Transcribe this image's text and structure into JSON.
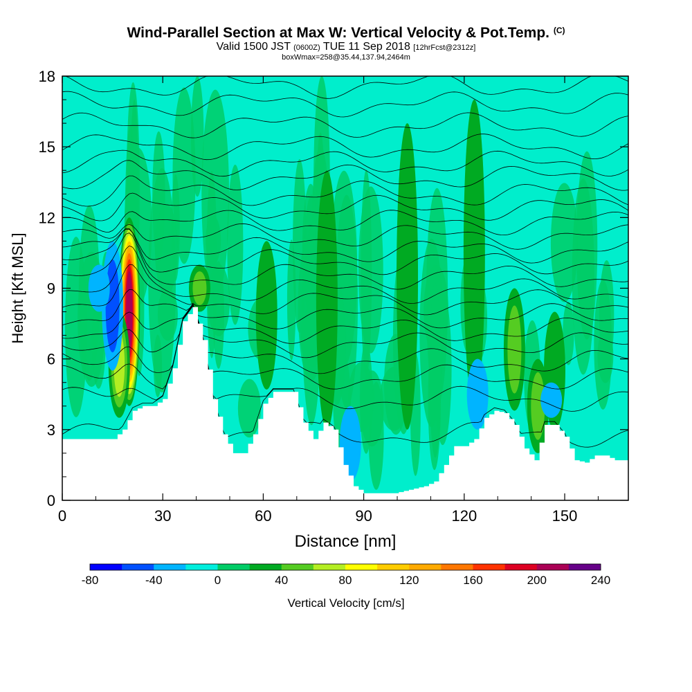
{
  "header": {
    "title": "Wind-Parallel Section at Max W: Vertical Velocity & Pot.Temp.",
    "title_mark": "(C)",
    "valid_prefix": "Valid 1500 JST",
    "valid_utc": "(0600Z)",
    "valid_date": "TUE 11 Sep 2018",
    "forecast": "[12hrFcst@2312z]",
    "box_info": "boxWmax=258@35.44,137.94,2464m"
  },
  "chart_data": {
    "type": "heatmap",
    "xlabel": "Distance [nm]",
    "ylabel": "Height [Kft MSL]",
    "xlim": [
      0,
      169
    ],
    "ylim": [
      0,
      18
    ],
    "x_ticks": [
      "0",
      "30",
      "60",
      "90",
      "120",
      "150"
    ],
    "y_ticks": [
      "0",
      "3",
      "6",
      "9",
      "12",
      "15",
      "18"
    ],
    "terrain": {
      "x": [
        0,
        6,
        12,
        15,
        18,
        21,
        24,
        27,
        30,
        33,
        36,
        39,
        42,
        45,
        48,
        51,
        54,
        57,
        60,
        63,
        66,
        69,
        72,
        75,
        78,
        81,
        84,
        87,
        90,
        93,
        96,
        99,
        102,
        105,
        108,
        111,
        114,
        117,
        120,
        123,
        126,
        129,
        132,
        135,
        138,
        141,
        144,
        147,
        150,
        153,
        156,
        159,
        162,
        165,
        169
      ],
      "height_kft": [
        2.6,
        2.6,
        2.6,
        2.6,
        3.0,
        3.8,
        4.0,
        4.0,
        4.3,
        5.6,
        7.6,
        8.2,
        6.8,
        4.3,
        2.8,
        2.0,
        2.0,
        2.8,
        4.1,
        4.6,
        4.6,
        4.6,
        3.3,
        2.6,
        3.3,
        3.0,
        1.5,
        0.6,
        0.3,
        0.3,
        0.3,
        0.3,
        0.4,
        0.5,
        0.6,
        0.8,
        1.5,
        2.3,
        2.3,
        2.6,
        3.5,
        3.8,
        3.7,
        3.2,
        2.2,
        1.7,
        3.2,
        3.2,
        2.7,
        1.7,
        1.6,
        1.9,
        1.9,
        1.7,
        1.7
      ]
    },
    "updrafts": [
      {
        "x": 20,
        "bottom": 4,
        "top": 12,
        "peak_cms": 200
      },
      {
        "x": 17,
        "bottom": 3.5,
        "top": 8,
        "peak_cms": 60
      },
      {
        "x": 41,
        "bottom": 8,
        "top": 10,
        "peak_cms": 40
      },
      {
        "x": 61,
        "bottom": 4.7,
        "top": 11,
        "peak_cms": 30
      },
      {
        "x": 135,
        "bottom": 3.8,
        "top": 9,
        "peak_cms": 40
      },
      {
        "x": 142,
        "bottom": 2,
        "top": 6,
        "peak_cms": 40
      },
      {
        "x": 147,
        "bottom": 3,
        "top": 8,
        "peak_cms": 30
      },
      {
        "x": 79,
        "bottom": 3,
        "top": 14,
        "peak_cms": 30
      },
      {
        "x": 103,
        "bottom": 3,
        "top": 16,
        "peak_cms": 30
      },
      {
        "x": 123,
        "bottom": 4,
        "top": 17,
        "peak_cms": 30
      }
    ],
    "downdrafts": [
      {
        "x": 15,
        "bottom": 5.5,
        "top": 11,
        "peak_cms": -40
      },
      {
        "x": 11,
        "bottom": 8,
        "top": 10,
        "peak_cms": -30
      },
      {
        "x": 86,
        "bottom": 0.8,
        "top": 4,
        "peak_cms": -20
      },
      {
        "x": 124,
        "bottom": 3,
        "top": 6,
        "peak_cms": -20
      },
      {
        "x": 146,
        "bottom": 3.5,
        "top": 5,
        "peak_cms": -20
      }
    ],
    "theta_levels_kft": [
      2.8,
      4.3,
      5.2,
      5.9,
      6.6,
      7.2,
      7.8,
      8.4,
      8.9,
      9.5,
      10.1,
      10.6,
      11.2,
      11.8,
      12.4,
      13.0,
      13.7,
      14.3,
      15.0,
      15.9,
      16.8,
      17.6
    ],
    "colorbar": {
      "label": "Vertical Velocity [cm/s]",
      "bounds": [
        -80,
        240
      ],
      "tick_labels": [
        "-80",
        "-40",
        "0",
        "40",
        "80",
        "120",
        "160",
        "200",
        "240"
      ],
      "colors": [
        "#0000ff",
        "#0050ff",
        "#00b4ff",
        "#00eedd",
        "#00cc66",
        "#00aa22",
        "#55cc22",
        "#b4ee22",
        "#ffff00",
        "#ffcc00",
        "#ffaa00",
        "#ff7700",
        "#ff3300",
        "#dd0022",
        "#aa0055",
        "#660088"
      ]
    }
  }
}
